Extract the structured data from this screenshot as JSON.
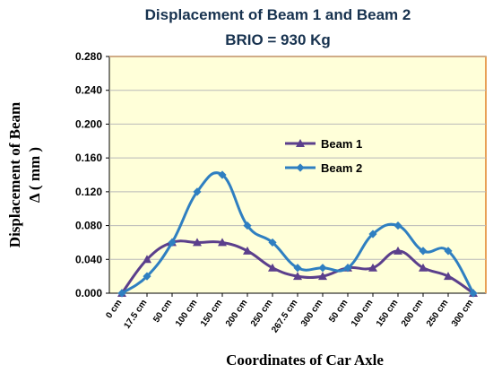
{
  "chart_data": {
    "type": "line",
    "title": "Displacement of Beam 1 and Beam 2",
    "subtitle": "BRIO  = 930 Kg",
    "xlabel": "Coordinates of Car Axle",
    "ylabel_line1": "Displacement of Beam",
    "ylabel_line2": "Δ  ( mm )",
    "categories": [
      "0 cm",
      "17.5 cm",
      "50 cm",
      "100 cm",
      "150 cm",
      "200 cm",
      "250 cm",
      "267.5 cm",
      "300 cm",
      "50 cm",
      "100 cm",
      "150 cm",
      "200 cm",
      "250 cm",
      "300 cm"
    ],
    "yticks": [
      "0.000",
      "0.040",
      "0.080",
      "0.120",
      "0.160",
      "0.200",
      "0.240",
      "0.280"
    ],
    "ylim": [
      0,
      0.28
    ],
    "grid": "horizontal",
    "legend_position": "center-right",
    "plot_background": "#ffffd9",
    "series": [
      {
        "name": "Beam 1",
        "color": "#5b3f8c",
        "marker": "triangle",
        "values": [
          0.0,
          0.04,
          0.06,
          0.06,
          0.06,
          0.05,
          0.03,
          0.02,
          0.02,
          0.03,
          0.03,
          0.05,
          0.03,
          0.02,
          0.0
        ]
      },
      {
        "name": "Beam 2",
        "color": "#2f7fc1",
        "marker": "diamond",
        "values": [
          0.0,
          0.02,
          0.06,
          0.12,
          0.14,
          0.08,
          0.06,
          0.03,
          0.03,
          0.03,
          0.07,
          0.08,
          0.05,
          0.05,
          0.0
        ]
      }
    ]
  }
}
